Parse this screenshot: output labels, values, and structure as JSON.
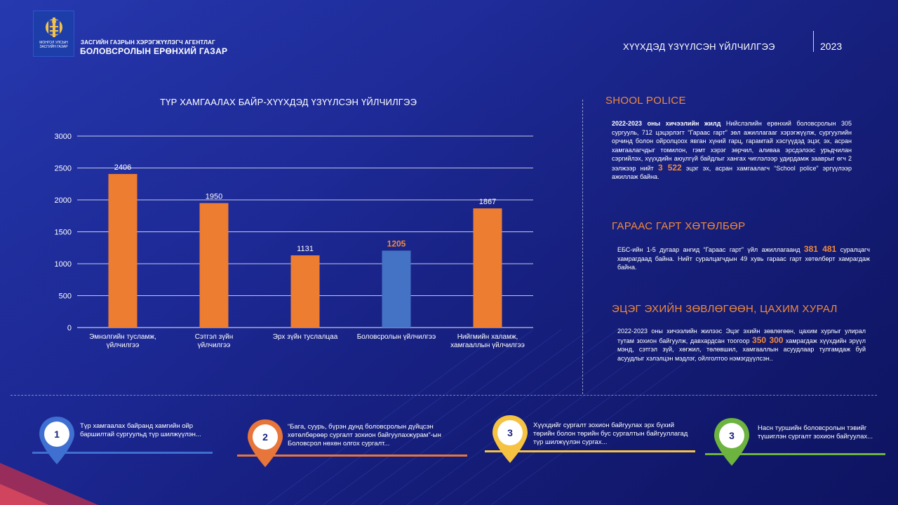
{
  "header": {
    "logo_small_line1": "МОНГОЛ УЛСЫН",
    "logo_small_line2": "ЗАСГИЙН ГАЗАР",
    "agency_line1": "ЗАСГИЙН ГАЗРЫН ХЭРЭГЖҮҮЛЭГЧ АГЕНТЛАГ",
    "agency_line2": "БОЛОВСРОЛЫН ЕРӨНХИЙ ГАЗАР",
    "title": "ХҮҮХДЭД ҮЗҮҮЛСЭН ҮЙЛЧИЛГЭЭ",
    "year": "2023"
  },
  "chart_data": {
    "type": "bar",
    "title": "ТҮР ХАМГААЛАХ БАЙР-ХҮҮХДЭД ҮЗҮҮЛСЭН ҮЙЛЧИЛГЭЭ",
    "categories": [
      [
        "Эмнэлгийн тусламж,",
        "үйлчилгээ"
      ],
      [
        "Сэтгэл зүйн",
        "үйлчилгээ"
      ],
      [
        "Эрх зүйн туслалцаа"
      ],
      [
        "Боловсролын үйлчилгээ"
      ],
      [
        "Нийгмийн халамж,",
        "хамгааллын үйлчилгээ"
      ]
    ],
    "values": [
      2406,
      1950,
      1131,
      1205,
      1867
    ],
    "bar_colors": [
      "#ed7d31",
      "#ed7d31",
      "#ed7d31",
      "#4472c4",
      "#ed7d31"
    ],
    "highlight_index": 3,
    "yticks": [
      0,
      500,
      1000,
      1500,
      2000,
      2500,
      3000
    ],
    "ylim": [
      0,
      3000
    ],
    "grid": true,
    "xlabel": "",
    "ylabel": ""
  },
  "right_panel": {
    "sec1": {
      "title": "SHOOL POLICE",
      "bold_lead": "2022-2023 оны хичээлийн жилд",
      "text_a": " Нийслэлийн ерөнхий боловсролын 305 сургууль, 712 цэцэрлэгт “Гараас гарт” зөл ажиллагааг хэрэгжүүлж, сургуулийн орчинд болон ойролцоох явган хүний гарц, гарамтай хэсгүүдэд эцэг, эх, асран хамгаалагчдыг томилон, гэмт хэрэг зөрчил, аливаа эрсдэлээс урьдчилан сэргийлэх, хүүхдийн аюулгүй байдлыг хангах чиглэлээр удирдамж зааврыг өгч 2 ээлжээр нийт ",
      "highlight": "3 522",
      "text_b": " эцэг эх, асран хамгаалагч “School police” эргүүлээр ажиллаж байна."
    },
    "sec2": {
      "title": "ГАРААС ГАРТ ХӨТӨЛБӨР",
      "text_a": "ЕБС-ийн 1-5 дугаар ангид “Гараас гарт” үйл ажиллагаанд ",
      "highlight": "381 481",
      "text_b": " суралцагч хамрагдаад байна. Нийт суралцагчдын 49 хувь гараас гарт хөтөлбөрт хамрагдаж байна."
    },
    "sec3": {
      "title": "ЭЦЭГ ЭХИЙН ЗӨВЛӨГӨӨН, ЦАХИМ ХУРАЛ",
      "text_a": "2022-2023 оны хичээлийн жилээс Эцэг эхийн зөвлөгөөн, цахим хурлыг улирал тутам зохион байгуулж, давхардсан тоогоор ",
      "highlight": "350 300",
      "text_b": " хамрагдаж хүүхдийн эрүүл мэнд, сэтгэл зүй, хөгжил, төлөвшил, хамгааллын асуудлаар тулгамдаж буй асуудлыг хэлэлцэн мэдлэг, ойлголтоо нэмэгдүүлсэн.."
    }
  },
  "markers": [
    {
      "num": "1",
      "color": "#3f6fd0",
      "text": "Түр хамгаалах байранд хамгийн ойр баршилтай сургуульд түр шилжүүлэн..."
    },
    {
      "num": "2",
      "color": "#e8753a",
      "text": "“Бага, суурь, бүрэн дунд боловсролын дүйцсэн хөтөлбөрөөр сургалт зохион байгуулахжурам”-ын Боловсрол нөхөн олгох сургалт..."
    },
    {
      "num": "3",
      "color": "#f5c242",
      "text": "Хүүхдийг сургалт зохион байгуулах эрх бүхий төрийн болон төрийн бус сургалтын байгууллагад түр шилжүүлэн сургах..."
    },
    {
      "num": "3",
      "color": "#6db33f",
      "text": "Насн туршийн боловсролын тэвийг түшиглэн сургалт зохион байгуулах..."
    }
  ]
}
